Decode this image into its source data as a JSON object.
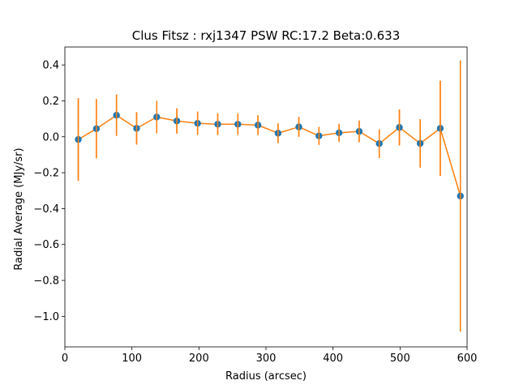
{
  "chart_data": {
    "type": "scatter",
    "title": "Clus Fitsz : rxj1347  PSW  RC:17.2  Beta:0.633",
    "xlabel": "Radius (arcsec)",
    "ylabel": "Radial Average (MJy/sr)",
    "xlim": [
      0,
      600
    ],
    "ylim": [
      -1.17,
      0.5
    ],
    "xticks": [
      0,
      100,
      200,
      300,
      400,
      500,
      600
    ],
    "xtick_labels": [
      "0",
      "100",
      "200",
      "300",
      "400",
      "500",
      "600"
    ],
    "yticks": [
      0.4,
      0.2,
      0.0,
      -0.2,
      -0.4,
      -0.6,
      -0.8,
      -1.0
    ],
    "ytick_labels": [
      "0.4",
      "0.2",
      "0.0",
      "−0.2",
      "−0.4",
      "−0.6",
      "−0.8",
      "−1.0"
    ],
    "grid": false,
    "colors": {
      "points": "#1f77b4",
      "line": "#ff7f0e",
      "errorbars": "#ff7f0e"
    },
    "series": [
      {
        "x": [
          20,
          47,
          77,
          107,
          137,
          167,
          198,
          228,
          258,
          288,
          318,
          349,
          379,
          409,
          439,
          469,
          499,
          530,
          560,
          590
        ],
        "y": [
          -0.015,
          0.045,
          0.12,
          0.047,
          0.11,
          0.088,
          0.075,
          0.07,
          0.07,
          0.065,
          0.02,
          0.055,
          0.005,
          0.022,
          0.03,
          -0.038,
          0.052,
          -0.037,
          0.047,
          -0.33
        ],
        "yerr": [
          0.23,
          0.165,
          0.115,
          0.09,
          0.09,
          0.07,
          0.065,
          0.06,
          0.06,
          0.055,
          0.055,
          0.055,
          0.05,
          0.05,
          0.06,
          0.08,
          0.1,
          0.135,
          0.265,
          0.755
        ]
      }
    ]
  }
}
